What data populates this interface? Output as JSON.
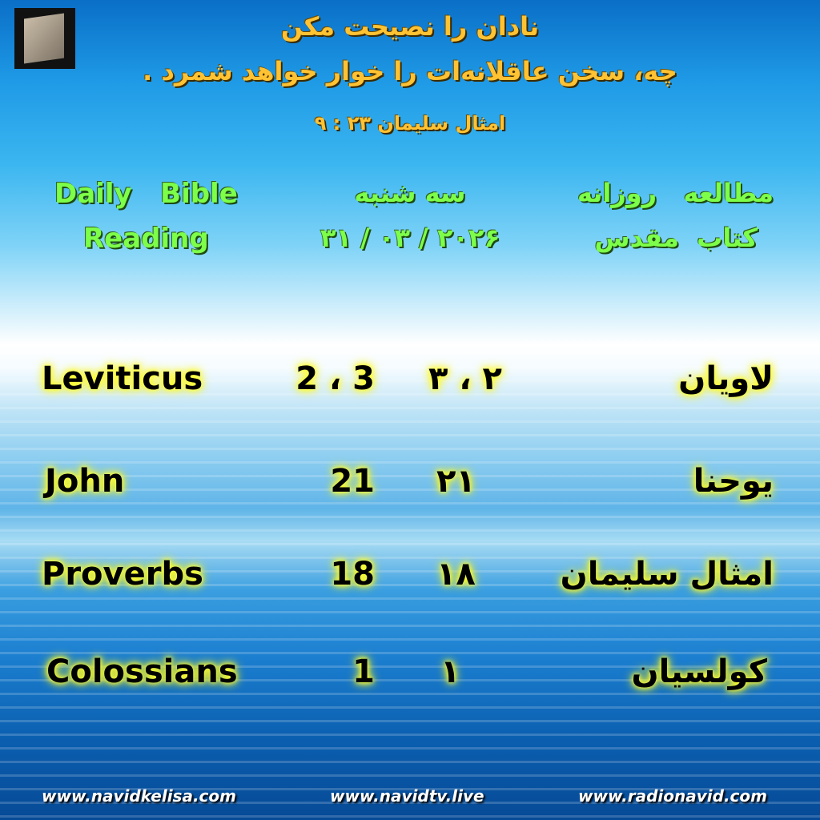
{
  "header": {
    "verse_line1": "نادان را نصیحت مکن",
    "verse_line2": "چه، سخن عاقلانه‌ات را خوار خواهد شمرد .",
    "verse_ref": "امثال سلیمان  ۲۳ : ۹",
    "logo": "navid-logo"
  },
  "title": {
    "english_line1": "Daily   Bible",
    "english_line2": "Reading",
    "day": "سه شنبه",
    "date": "۲۰۲۶ / ۰۳ / ۳۱",
    "persian_line1": "مطالعه   روزانه",
    "persian_line2": "کتاب  مقدس"
  },
  "readings": [
    {
      "en_book": "Leviticus",
      "en_chapters": "2 ، 3",
      "fa_chapters": "۲ ، ۳",
      "fa_book": "لاویان"
    },
    {
      "en_book": "John",
      "en_chapters": "21",
      "fa_chapters": "۲۱",
      "fa_book": "یوحنا"
    },
    {
      "en_book": "Proverbs",
      "en_chapters": "18",
      "fa_chapters": "۱۸",
      "fa_book": "امثال سلیمان"
    },
    {
      "en_book": "Colossians",
      "en_chapters": "1",
      "fa_chapters": "۱",
      "fa_book": "کولسیان"
    }
  ],
  "footer": {
    "url1": "www.navidkelisa.com",
    "url2": "www.navidtv.live",
    "url3": "www.radionavid.com"
  },
  "colors": {
    "verse": "#ffc233",
    "title": "#7dff4a",
    "glow": "#ffff30"
  }
}
